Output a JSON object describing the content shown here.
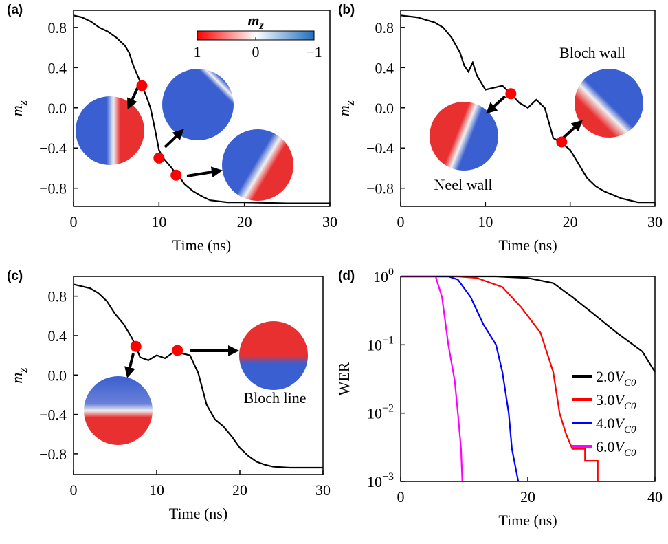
{
  "chart_data": [
    {
      "type": "line",
      "panel_label": "(a)",
      "xlabel": "Time (ns)",
      "ylabel": "m",
      "ylabel_sub": "z",
      "xlim": [
        0,
        30
      ],
      "xticks": [
        0,
        10,
        20,
        30
      ],
      "ylim": [
        -0.98,
        0.97
      ],
      "yticks": [
        {
          "value": -0.8,
          "label": "−0.8"
        },
        {
          "value": -0.4,
          "label": "−0.4"
        },
        {
          "value": 0,
          "label": "0.0"
        },
        0.4,
        0.8
      ],
      "x": [
        0,
        1,
        2,
        3,
        4,
        5,
        6,
        6.5,
        7,
        7.5,
        8,
        8.5,
        9,
        9.5,
        10,
        10.5,
        11,
        11.5,
        12,
        12.5,
        13,
        14,
        15,
        16,
        17,
        18,
        20,
        25,
        30
      ],
      "values": [
        0.92,
        0.9,
        0.86,
        0.8,
        0.76,
        0.7,
        0.62,
        0.55,
        0.42,
        0.32,
        0.22,
        0.12,
        0.0,
        -0.2,
        -0.42,
        -0.5,
        -0.55,
        -0.6,
        -0.66,
        -0.7,
        -0.76,
        -0.83,
        -0.88,
        -0.92,
        -0.93,
        -0.94,
        -0.94,
        -0.95,
        -0.95
      ],
      "color": "#000000",
      "markers": {
        "x": [
          8,
          10,
          12
        ],
        "y": [
          0.22,
          -0.5,
          -0.67
        ],
        "color": "#ff0000"
      },
      "colorbar": {
        "label": "m",
        "label_sub": "z",
        "clim": [
          1,
          -1
        ],
        "ticks": [
          1,
          0,
          {
            "value": -1,
            "label": "−1"
          }
        ]
      }
    },
    {
      "type": "line",
      "panel_label": "(b)",
      "xlabel": "Time (ns)",
      "ylabel": "m",
      "ylabel_sub": "z",
      "xlim": [
        0,
        30
      ],
      "xticks": [
        0,
        10,
        20,
        30
      ],
      "ylim": [
        -0.98,
        0.97
      ],
      "yticks": [
        {
          "value": -0.8,
          "label": "−0.8"
        },
        {
          "value": -0.4,
          "label": "−0.4"
        },
        {
          "value": 0,
          "label": "0.0"
        },
        0.4,
        0.8
      ],
      "x": [
        0,
        2,
        4,
        5,
        6,
        7,
        7.5,
        8,
        8.5,
        9,
        10,
        11,
        12,
        13,
        14,
        15,
        16,
        17,
        17.5,
        18,
        19,
        20,
        21,
        22,
        23,
        24,
        26,
        28,
        30
      ],
      "values": [
        0.92,
        0.9,
        0.85,
        0.8,
        0.7,
        0.55,
        0.42,
        0.36,
        0.45,
        0.32,
        0.18,
        0.2,
        0.22,
        0.14,
        0.05,
        0.0,
        0.08,
        0.0,
        -0.15,
        -0.3,
        -0.35,
        -0.42,
        -0.56,
        -0.7,
        -0.78,
        -0.83,
        -0.9,
        -0.94,
        -0.94
      ],
      "color": "#000000",
      "markers": {
        "x": [
          13,
          19
        ],
        "y": [
          0.14,
          -0.34
        ],
        "color": "#ff0000"
      },
      "annotations": [
        "Bloch wall",
        "Neel wall"
      ]
    },
    {
      "type": "line",
      "panel_label": "(c)",
      "xlabel": "Time (ns)",
      "ylabel": "m",
      "ylabel_sub": "z",
      "xlim": [
        0,
        30
      ],
      "xticks": [
        0,
        10,
        20,
        30
      ],
      "ylim": [
        -1.01,
        1.0
      ],
      "yticks": [
        {
          "value": -0.8,
          "label": "−0.8"
        },
        {
          "value": -0.4,
          "label": "−0.4"
        },
        {
          "value": 0,
          "label": "0.0"
        },
        0.4,
        0.8
      ],
      "x": [
        0,
        1,
        2,
        3,
        4,
        5,
        6,
        7,
        7.5,
        8,
        9,
        10,
        11,
        12,
        12.5,
        13,
        14,
        15,
        16,
        17,
        18,
        19,
        20,
        21,
        22,
        23,
        24,
        26,
        30
      ],
      "values": [
        0.92,
        0.9,
        0.88,
        0.83,
        0.75,
        0.62,
        0.52,
        0.38,
        0.29,
        0.18,
        0.15,
        0.2,
        0.17,
        0.23,
        0.25,
        0.22,
        0.2,
        0.02,
        -0.3,
        -0.45,
        -0.52,
        -0.62,
        -0.74,
        -0.82,
        -0.88,
        -0.91,
        -0.93,
        -0.94,
        -0.94
      ],
      "color": "#000000",
      "markers": {
        "x": [
          7.5,
          12.5
        ],
        "y": [
          0.29,
          0.25
        ],
        "color": "#ff0000"
      },
      "annotations": [
        "Bloch line"
      ]
    },
    {
      "type": "line",
      "panel_label": "(d)",
      "xlabel": "Time (ns)",
      "ylabel": "WER",
      "log_y": true,
      "xlim": [
        0,
        40
      ],
      "xticks": [
        0,
        20,
        40
      ],
      "ylim": [
        0.001,
        1
      ],
      "yticks": [
        {
          "value": 0.001,
          "label": "10",
          "exponent": "−3"
        },
        {
          "value": 0.01,
          "label": "10",
          "exponent": "−2"
        },
        {
          "value": 0.1,
          "label": "10",
          "exponent": "−1"
        },
        {
          "value": 1,
          "label": "10",
          "exponent": "0"
        }
      ],
      "legend": "right",
      "series": [
        {
          "name": "2.0",
          "name_sub": "C0",
          "color": "#000000",
          "x": [
            0,
            15,
            20,
            24,
            27,
            30,
            34,
            38,
            40
          ],
          "values": [
            1,
            1,
            0.95,
            0.8,
            0.5,
            0.3,
            0.15,
            0.08,
            0.04
          ]
        },
        {
          "name": "3.0",
          "name_sub": "C0",
          "color": "#ff0000",
          "x": [
            0,
            9,
            12,
            16,
            19,
            22,
            24,
            25,
            26,
            27,
            29,
            29,
            31,
            31
          ],
          "values": [
            1,
            1,
            0.95,
            0.7,
            0.35,
            0.15,
            0.04,
            0.01,
            0.005,
            0.003,
            0.003,
            0.002,
            0.002,
            0.001
          ]
        },
        {
          "name": "4.0",
          "name_sub": "C0",
          "color": "#0000ff",
          "x": [
            0,
            7.5,
            9,
            11,
            13,
            15,
            16,
            17,
            17.5,
            18.5
          ],
          "values": [
            1,
            1,
            0.9,
            0.5,
            0.2,
            0.1,
            0.04,
            0.01,
            0.003,
            0.001
          ]
        },
        {
          "name": "6.0",
          "name_sub": "C0",
          "color": "#ff00ff",
          "x": [
            0,
            5.5,
            6.5,
            7.5,
            8.5,
            9,
            9.5,
            9.7
          ],
          "values": [
            1,
            1,
            0.5,
            0.1,
            0.03,
            0.01,
            0.003,
            0.001
          ]
        }
      ]
    }
  ]
}
